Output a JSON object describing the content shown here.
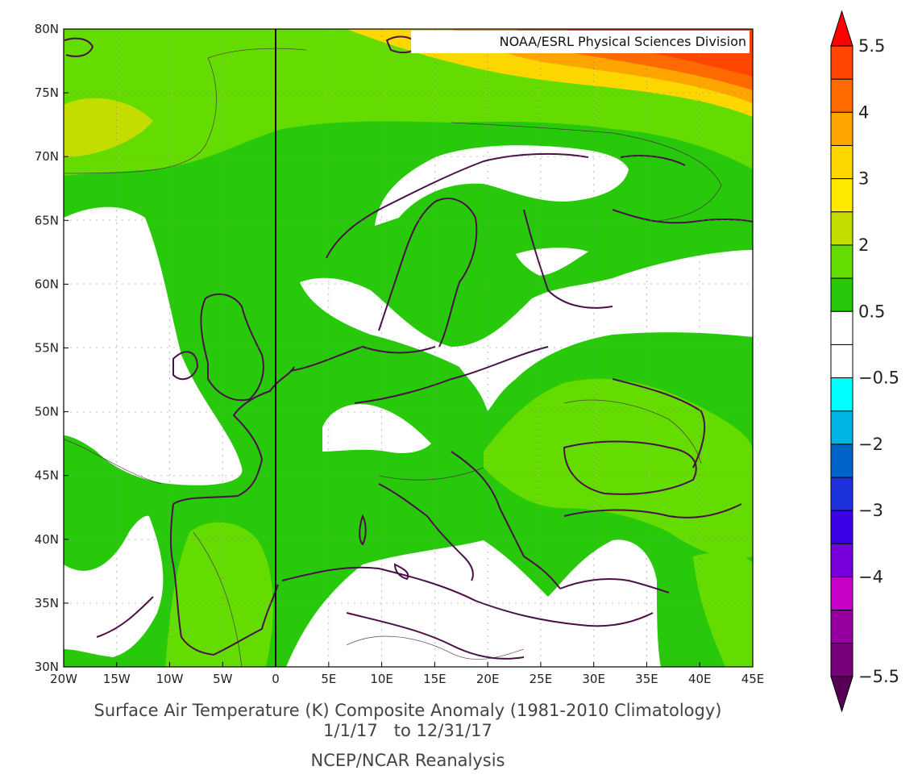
{
  "credit": "NOAA/ESRL Physical Sciences Division",
  "title": {
    "line1": "Surface Air Temperature (K) Composite Anomaly (1981-2010 Climatology)",
    "line2": "1/1/17   to 12/31/17",
    "line3": "NCEP/NCAR Reanalysis"
  },
  "axes": {
    "x_ticks": [
      "20W",
      "15W",
      "10W",
      "5W",
      "0",
      "5E",
      "10E",
      "15E",
      "20E",
      "25E",
      "30E",
      "35E",
      "40E",
      "45E"
    ],
    "y_ticks": [
      "30N",
      "35N",
      "40N",
      "45N",
      "50N",
      "55N",
      "60N",
      "65N",
      "70N",
      "75N",
      "80N"
    ],
    "lon_range": [
      -20,
      45
    ],
    "lat_range": [
      30,
      80
    ]
  },
  "colorbar": {
    "labels": [
      "5.5",
      "4",
      "3",
      "2",
      "0.5",
      "-0.5",
      "-2",
      "-3",
      "-4",
      "-5.5"
    ],
    "colors_top_to_bottom": [
      "#ff0000",
      "#ff4500",
      "#ff6a00",
      "#ffa500",
      "#ffd700",
      "#ffeb00",
      "#c4dd00",
      "#64dc00",
      "#28c80a",
      "#ffffff",
      "#ffffff",
      "#00ffff",
      "#00b4e6",
      "#0064c8",
      "#1e32dc",
      "#3c00e6",
      "#7800dc",
      "#c800c8",
      "#9600a0",
      "#780078",
      "#550055"
    ]
  },
  "legend_colors": {
    "white": "#ffffff",
    "light_green": "#64dc00",
    "green": "#28c80a",
    "yellow_green": "#c4dd00",
    "coast": "#4a1048"
  }
}
